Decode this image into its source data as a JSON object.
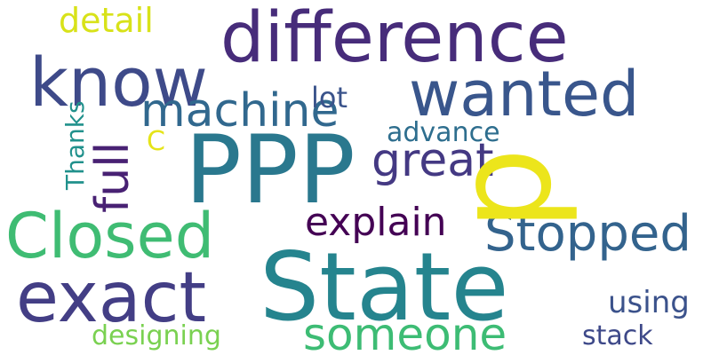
{
  "words": [
    {
      "text": "difference",
      "color": "#472c7a"
    },
    {
      "text": "know",
      "color": "#3e4a89"
    },
    {
      "text": "wanted",
      "color": "#39568c"
    },
    {
      "text": "detail",
      "color": "#d8e219"
    },
    {
      "text": "machine",
      "color": "#31688e"
    },
    {
      "text": "lot",
      "color": "#3a538b"
    },
    {
      "text": "PPP",
      "color": "#2a788e"
    },
    {
      "text": "p",
      "color": "#ece51b"
    },
    {
      "text": "great",
      "color": "#443983"
    },
    {
      "text": "advance",
      "color": "#2e6e8e"
    },
    {
      "text": "C",
      "color": "#e5e419"
    },
    {
      "text": "full",
      "color": "#482173"
    },
    {
      "text": "Thanks",
      "color": "#21918c"
    },
    {
      "text": "Closed",
      "color": "#3fbc73"
    },
    {
      "text": "explain",
      "color": "#440154"
    },
    {
      "text": "Stopped",
      "color": "#33638d"
    },
    {
      "text": "State",
      "color": "#25848e"
    },
    {
      "text": "exact",
      "color": "#433e85"
    },
    {
      "text": "someone",
      "color": "#3dbc74"
    },
    {
      "text": "using",
      "color": "#3b528b"
    },
    {
      "text": "designing",
      "color": "#7ad151"
    },
    {
      "text": "stack",
      "color": "#3e4989"
    }
  ]
}
